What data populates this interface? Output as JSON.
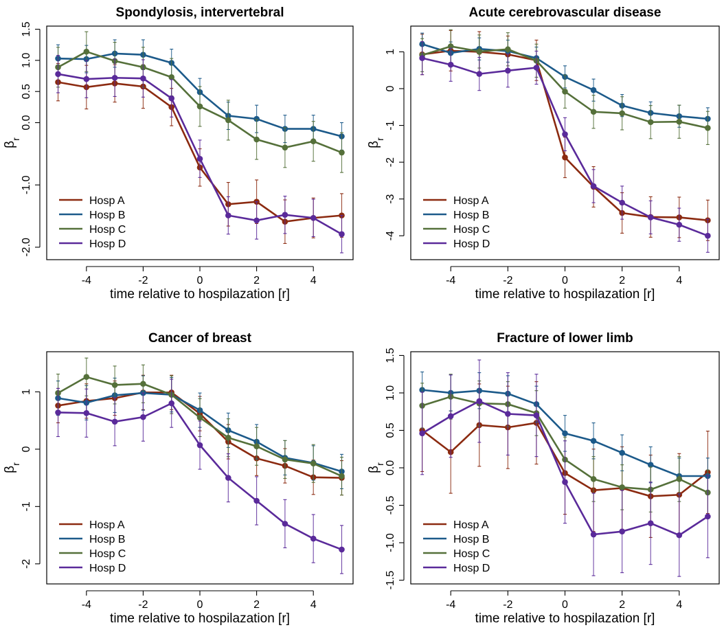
{
  "figure": {
    "xlabel": "time relative to hospilazation [r]",
    "ylabel_main": "β",
    "ylabel_sub": "r",
    "xticks": [
      -4,
      -2,
      0,
      2,
      4
    ]
  },
  "series_colors": {
    "Hosp A": "#8b2a10",
    "Hosp B": "#1c5a8a",
    "Hosp C": "#55703a",
    "Hosp D": "#5a2a9a"
  },
  "chart_data": [
    {
      "type": "line",
      "title": "Spondylosis, intervertebral",
      "xlabel": "time relative to hospilazation [r]",
      "ylabel": "βr",
      "x": [
        -5,
        -4,
        -3,
        -2,
        -1,
        0,
        1,
        2,
        3,
        4,
        5
      ],
      "ylim": [
        -2.2,
        1.55
      ],
      "yticks": [
        -2.0,
        -1.0,
        0.0,
        0.5,
        1.0,
        1.5
      ],
      "ytick_labels": [
        "-2.0",
        "-1.0",
        "0.0",
        "0.5",
        "1.0",
        "1.5"
      ],
      "legend": "bottom-left",
      "series": [
        {
          "name": "Hosp A",
          "values": [
            0.65,
            0.57,
            0.63,
            0.58,
            0.25,
            -0.72,
            -1.31,
            -1.27,
            -1.59,
            -1.53,
            -1.49
          ],
          "err": [
            0.3,
            0.35,
            0.3,
            0.35,
            0.3,
            0.3,
            0.35,
            0.35,
            0.35,
            0.32,
            0.35
          ]
        },
        {
          "name": "Hosp B",
          "values": [
            1.03,
            1.02,
            1.11,
            1.09,
            0.96,
            0.49,
            0.11,
            0.06,
            -0.1,
            -0.1,
            -0.22
          ],
          "err": [
            0.22,
            0.22,
            0.22,
            0.24,
            0.22,
            0.22,
            0.22,
            0.22,
            0.22,
            0.22,
            0.22
          ]
        },
        {
          "name": "Hosp C",
          "values": [
            0.89,
            1.14,
            0.99,
            0.89,
            0.73,
            0.26,
            0.04,
            -0.27,
            -0.4,
            -0.3,
            -0.48
          ],
          "err": [
            0.32,
            0.32,
            0.3,
            0.32,
            0.3,
            0.32,
            0.32,
            0.32,
            0.32,
            0.32,
            0.32
          ]
        },
        {
          "name": "Hosp D",
          "values": [
            0.78,
            0.7,
            0.72,
            0.71,
            0.39,
            -0.58,
            -1.49,
            -1.57,
            -1.48,
            -1.53,
            -1.79
          ],
          "err": [
            0.3,
            0.3,
            0.3,
            0.3,
            0.3,
            0.3,
            0.3,
            0.3,
            0.3,
            0.3,
            0.3
          ]
        }
      ]
    },
    {
      "type": "line",
      "title": "Acute cerebrovascular disease",
      "xlabel": "time relative to hospilazation [r]",
      "ylabel": "βr",
      "x": [
        -5,
        -4,
        -3,
        -2,
        -1,
        0,
        1,
        2,
        3,
        4,
        5
      ],
      "ylim": [
        -4.65,
        1.7
      ],
      "yticks": [
        -4,
        -3,
        -2,
        -1,
        0,
        1
      ],
      "ytick_labels": [
        "-4",
        "-3",
        "-2",
        "-1",
        "0",
        "1"
      ],
      "legend": "bottom-left",
      "series": [
        {
          "name": "Hosp A",
          "values": [
            0.93,
            1.03,
            1.0,
            0.93,
            0.77,
            -1.87,
            -2.67,
            -3.38,
            -3.49,
            -3.5,
            -3.58
          ],
          "err": [
            0.55,
            0.55,
            0.55,
            0.5,
            0.55,
            0.55,
            0.55,
            0.55,
            0.55,
            0.55,
            0.55
          ]
        },
        {
          "name": "Hosp B",
          "values": [
            1.21,
            0.97,
            1.08,
            1.02,
            0.83,
            0.32,
            -0.04,
            -0.46,
            -0.66,
            -0.75,
            -0.82
          ],
          "err": [
            0.3,
            0.3,
            0.3,
            0.3,
            0.3,
            0.3,
            0.3,
            0.3,
            0.3,
            0.3,
            0.3
          ]
        },
        {
          "name": "Hosp C",
          "values": [
            0.91,
            1.15,
            1.01,
            1.07,
            0.76,
            -0.08,
            -0.63,
            -0.67,
            -0.91,
            -0.9,
            -1.07
          ],
          "err": [
            0.45,
            0.45,
            0.45,
            0.45,
            0.45,
            0.45,
            0.45,
            0.45,
            0.45,
            0.45,
            0.45
          ]
        },
        {
          "name": "Hosp D",
          "values": [
            0.83,
            0.65,
            0.4,
            0.49,
            0.57,
            -1.24,
            -2.65,
            -3.1,
            -3.5,
            -3.7,
            -4.0
          ],
          "err": [
            0.45,
            0.45,
            0.45,
            0.45,
            0.45,
            0.45,
            0.45,
            0.45,
            0.45,
            0.45,
            0.45
          ]
        }
      ]
    },
    {
      "type": "line",
      "title": "Cancer of breast",
      "xlabel": "time relative to hospilazation [r]",
      "ylabel": "βr",
      "x": [
        -5,
        -4,
        -3,
        -2,
        -1,
        0,
        1,
        2,
        3,
        4,
        5
      ],
      "ylim": [
        -2.35,
        1.7
      ],
      "yticks": [
        -2,
        -1,
        0,
        1
      ],
      "ytick_labels": [
        "-2",
        "-1",
        "0",
        "1"
      ],
      "legend": "bottom-left",
      "series": [
        {
          "name": "Hosp A",
          "values": [
            0.76,
            0.84,
            0.89,
            0.99,
            0.99,
            0.62,
            0.13,
            -0.16,
            -0.29,
            -0.49,
            -0.5
          ],
          "err": [
            0.3,
            0.3,
            0.3,
            0.3,
            0.3,
            0.3,
            0.3,
            0.3,
            0.3,
            0.3,
            0.3
          ]
        },
        {
          "name": "Hosp B",
          "values": [
            0.89,
            0.81,
            0.94,
            0.98,
            0.95,
            0.68,
            0.33,
            0.13,
            -0.15,
            -0.24,
            -0.39
          ],
          "err": [
            0.3,
            0.3,
            0.3,
            0.3,
            0.3,
            0.3,
            0.3,
            0.3,
            0.3,
            0.3,
            0.3
          ]
        },
        {
          "name": "Hosp C",
          "values": [
            0.98,
            1.26,
            1.12,
            1.14,
            0.95,
            0.55,
            0.2,
            0.05,
            -0.18,
            -0.25,
            -0.47
          ],
          "err": [
            0.33,
            0.33,
            0.33,
            0.33,
            0.33,
            0.33,
            0.33,
            0.33,
            0.33,
            0.33,
            0.33
          ]
        },
        {
          "name": "Hosp D",
          "values": [
            0.64,
            0.63,
            0.48,
            0.56,
            0.8,
            0.07,
            -0.5,
            -0.9,
            -1.3,
            -1.56,
            -1.75
          ],
          "err": [
            0.42,
            0.42,
            0.42,
            0.42,
            0.42,
            0.42,
            0.42,
            0.42,
            0.42,
            0.42,
            0.42
          ]
        }
      ]
    },
    {
      "type": "line",
      "title": "Fracture of lower limb",
      "xlabel": "time relative to hospilazation [r]",
      "ylabel": "βr",
      "x": [
        -5,
        -4,
        -3,
        -2,
        -1,
        0,
        1,
        2,
        3,
        4,
        5
      ],
      "ylim": [
        -1.55,
        1.55
      ],
      "yticks": [
        -1.5,
        -1.0,
        -0.5,
        0.0,
        0.5,
        1.0,
        1.5
      ],
      "ytick_labels": [
        "-1.5",
        "-1.0",
        "-0.5",
        "0.0",
        "0.5",
        "1.0",
        "1.5"
      ],
      "legend": "bottom-left",
      "series": [
        {
          "name": "Hosp A",
          "values": [
            0.5,
            0.21,
            0.57,
            0.54,
            0.6,
            -0.07,
            -0.3,
            -0.27,
            -0.38,
            -0.36,
            -0.06
          ],
          "err": [
            0.55,
            0.55,
            0.55,
            0.55,
            0.55,
            0.55,
            0.55,
            0.55,
            0.55,
            0.55,
            0.55
          ]
        },
        {
          "name": "Hosp B",
          "values": [
            1.04,
            1.0,
            1.03,
            0.99,
            0.85,
            0.46,
            0.36,
            0.2,
            0.04,
            -0.11,
            -0.11
          ],
          "err": [
            0.24,
            0.24,
            0.24,
            0.24,
            0.24,
            0.24,
            0.24,
            0.24,
            0.24,
            0.24,
            0.24
          ]
        },
        {
          "name": "Hosp C",
          "values": [
            0.83,
            0.95,
            0.86,
            0.85,
            0.73,
            0.11,
            -0.15,
            -0.26,
            -0.29,
            -0.15,
            -0.33
          ],
          "err": [
            0.3,
            0.3,
            0.3,
            0.3,
            0.3,
            0.3,
            0.3,
            0.3,
            0.3,
            0.3,
            0.3
          ]
        },
        {
          "name": "Hosp D",
          "values": [
            0.46,
            0.69,
            0.89,
            0.72,
            0.7,
            -0.19,
            -0.89,
            -0.85,
            -0.74,
            -0.9,
            -0.65
          ],
          "err": [
            0.55,
            0.55,
            0.55,
            0.55,
            0.55,
            0.55,
            0.55,
            0.55,
            0.55,
            0.55,
            0.55
          ]
        }
      ]
    }
  ]
}
